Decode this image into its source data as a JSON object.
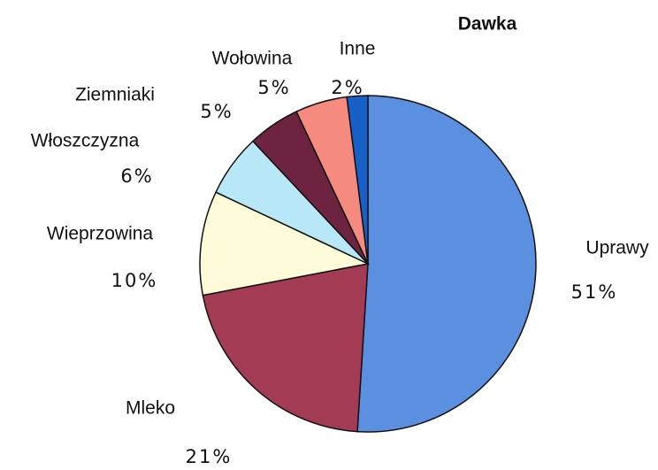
{
  "chart_data": {
    "type": "pie",
    "title": "Dawka",
    "categories": [
      "Uprawy",
      "Mleko",
      "Wieprzowina",
      "Włoszczyzna",
      "Ziemniaki",
      "Wołowina",
      "Inne"
    ],
    "values": [
      51,
      21,
      10,
      6,
      5,
      5,
      2
    ],
    "value_labels": [
      "51%",
      "21%",
      "10%",
      "6%",
      "5%",
      "5%",
      "2%"
    ],
    "colors": [
      "#5b8fe0",
      "#a33b55",
      "#fdfbd8",
      "#b8e8f7",
      "#6e2440",
      "#f58b7e",
      "#1660c8"
    ]
  }
}
